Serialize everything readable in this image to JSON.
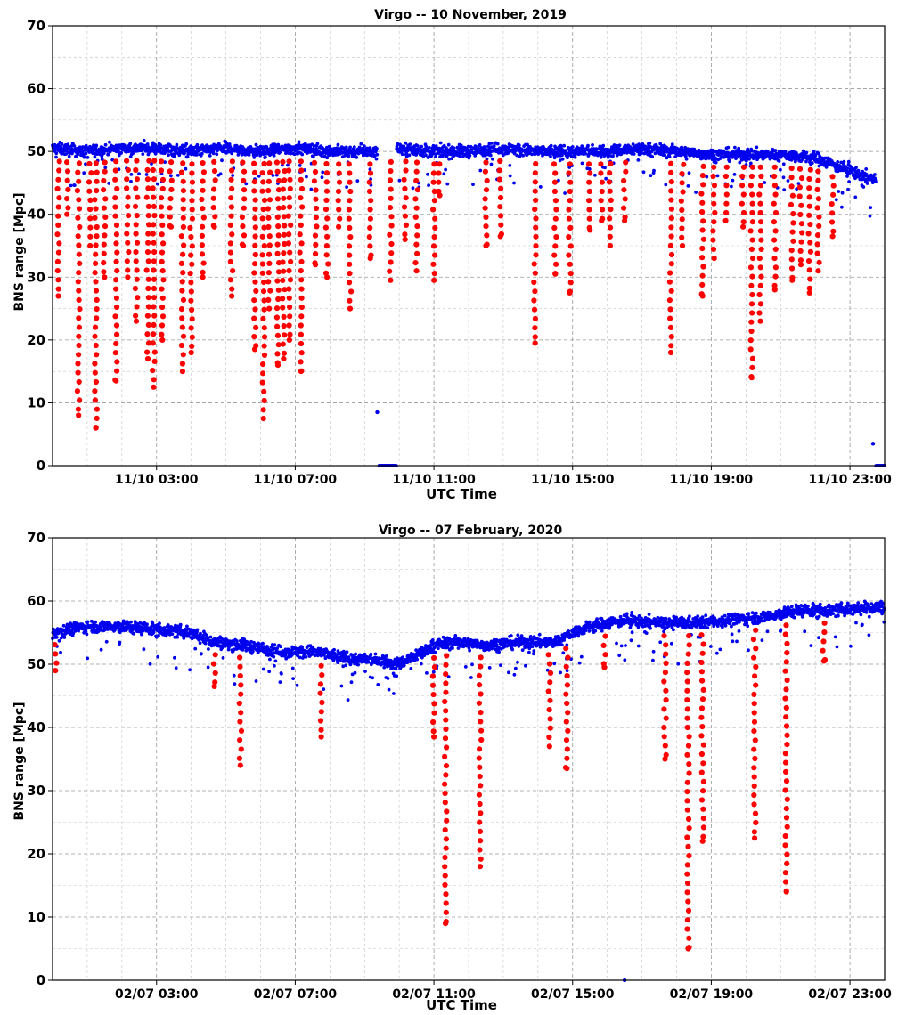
{
  "chart_data": [
    {
      "type": "scatter",
      "title": "Virgo -- 10 November, 2019",
      "xlabel": "UTC Time",
      "ylabel": "BNS range [Mpc]",
      "ylim": [
        0,
        70
      ],
      "xlim": [
        "2019-11-10 00:00",
        "2019-11-11 00:00"
      ],
      "grid": true,
      "yticks": [
        "0",
        "10",
        "20",
        "30",
        "40",
        "50",
        "60",
        "70"
      ],
      "xticks": [
        {
          "time": "2019-11-10 03:00",
          "label": "11/10 03:00"
        },
        {
          "time": "2019-11-10 07:00",
          "label": "11/10 07:00"
        },
        {
          "time": "2019-11-10 11:00",
          "label": "11/10 11:00"
        },
        {
          "time": "2019-11-10 15:00",
          "label": "11/10 15:00"
        },
        {
          "time": "2019-11-10 19:00",
          "label": "11/10 19:00"
        },
        {
          "time": "2019-11-10 23:00",
          "label": "11/10 23:00"
        }
      ],
      "series": [
        {
          "color": "#0000ee",
          "marker": "small-dot",
          "baseline": [
            [
              "2019-11-10 00:00",
              50.5
            ],
            [
              "2019-11-10 01:00",
              50.0
            ],
            [
              "2019-11-10 02:00",
              50.5
            ],
            [
              "2019-11-10 03:00",
              50.5
            ],
            [
              "2019-11-10 04:00",
              50.0
            ],
            [
              "2019-11-10 05:00",
              50.5
            ],
            [
              "2019-11-10 06:00",
              50.0
            ],
            [
              "2019-11-10 07:00",
              50.5
            ],
            [
              "2019-11-10 08:00",
              50.0
            ],
            [
              "2019-11-10 09:15",
              50.0
            ],
            [
              "2019-11-10 10:00",
              50.5
            ],
            [
              "2019-11-10 11:00",
              50.0
            ],
            [
              "2019-11-10 12:00",
              50.0
            ],
            [
              "2019-11-10 13:00",
              50.5
            ],
            [
              "2019-11-10 14:00",
              50.0
            ],
            [
              "2019-11-10 15:00",
              50.0
            ],
            [
              "2019-11-10 16:00",
              50.0
            ],
            [
              "2019-11-10 17:00",
              50.5
            ],
            [
              "2019-11-10 18:00",
              50.0
            ],
            [
              "2019-11-10 19:00",
              49.5
            ],
            [
              "2019-11-10 20:00",
              49.5
            ],
            [
              "2019-11-10 21:00",
              49.5
            ],
            [
              "2019-11-10 22:00",
              49.0
            ],
            [
              "2019-11-10 23:00",
              47.0
            ],
            [
              "2019-11-10 23:40",
              45.5
            ]
          ],
          "gaps": [
            [
              "2019-11-10 09:22",
              "2019-11-10 09:55"
            ],
            [
              "2019-11-10 23:45",
              "2019-11-11 00:00"
            ]
          ],
          "zero_segments": [
            [
              "2019-11-10 09:25",
              "2019-11-10 09:55"
            ],
            [
              "2019-11-10 23:45",
              "2019-11-11 00:00"
            ]
          ],
          "outliers": [
            [
              "2019-11-10 09:22",
              8.5
            ],
            [
              "2019-11-10 23:40",
              3.5
            ]
          ]
        },
        {
          "color": "#ff0000",
          "marker": "large-dot",
          "dips": [
            [
              "2019-11-10 00:10",
              27
            ],
            [
              "2019-11-10 00:25",
              40
            ],
            [
              "2019-11-10 00:45",
              8
            ],
            [
              "2019-11-10 01:05",
              35
            ],
            [
              "2019-11-10 01:15",
              6
            ],
            [
              "2019-11-10 01:30",
              30
            ],
            [
              "2019-11-10 01:50",
              13.5
            ],
            [
              "2019-11-10 02:10",
              30
            ],
            [
              "2019-11-10 02:25",
              23
            ],
            [
              "2019-11-10 02:45",
              17
            ],
            [
              "2019-11-10 02:55",
              12.5
            ],
            [
              "2019-11-10 03:10",
              20
            ],
            [
              "2019-11-10 03:25",
              38
            ],
            [
              "2019-11-10 03:45",
              15
            ],
            [
              "2019-11-10 04:00",
              18
            ],
            [
              "2019-11-10 04:20",
              30
            ],
            [
              "2019-11-10 04:40",
              38
            ],
            [
              "2019-11-10 05:10",
              27
            ],
            [
              "2019-11-10 05:30",
              35
            ],
            [
              "2019-11-10 05:50",
              18.5
            ],
            [
              "2019-11-10 06:05",
              7.5
            ],
            [
              "2019-11-10 06:15",
              25
            ],
            [
              "2019-11-10 06:30",
              16
            ],
            [
              "2019-11-10 06:40",
              17
            ],
            [
              "2019-11-10 06:50",
              20
            ],
            [
              "2019-11-10 07:10",
              15
            ],
            [
              "2019-11-10 07:35",
              32
            ],
            [
              "2019-11-10 07:55",
              30
            ],
            [
              "2019-11-10 08:15",
              38
            ],
            [
              "2019-11-10 08:35",
              25
            ],
            [
              "2019-11-10 09:10",
              33
            ],
            [
              "2019-11-10 09:45",
              29.5
            ],
            [
              "2019-11-10 10:10",
              36
            ],
            [
              "2019-11-10 10:30",
              31
            ],
            [
              "2019-11-10 11:00",
              29.5
            ],
            [
              "2019-11-10 11:10",
              43
            ],
            [
              "2019-11-10 12:30",
              35
            ],
            [
              "2019-11-10 12:55",
              36.5
            ],
            [
              "2019-11-10 13:55",
              19.5
            ],
            [
              "2019-11-10 14:30",
              30.5
            ],
            [
              "2019-11-10 14:55",
              27.5
            ],
            [
              "2019-11-10 15:30",
              37.5
            ],
            [
              "2019-11-10 15:50",
              39
            ],
            [
              "2019-11-10 16:05",
              35
            ],
            [
              "2019-11-10 16:30",
              39
            ],
            [
              "2019-11-10 17:50",
              18
            ],
            [
              "2019-11-10 18:10",
              35
            ],
            [
              "2019-11-10 18:45",
              27
            ],
            [
              "2019-11-10 19:05",
              33
            ],
            [
              "2019-11-10 19:25",
              39
            ],
            [
              "2019-11-10 19:55",
              38
            ],
            [
              "2019-11-10 20:10",
              14
            ],
            [
              "2019-11-10 20:25",
              23
            ],
            [
              "2019-11-10 20:50",
              28
            ],
            [
              "2019-11-10 21:20",
              29.5
            ],
            [
              "2019-11-10 21:35",
              32
            ],
            [
              "2019-11-10 21:50",
              27.5
            ],
            [
              "2019-11-10 22:05",
              31
            ],
            [
              "2019-11-10 22:30",
              36.5
            ]
          ]
        }
      ]
    },
    {
      "type": "scatter",
      "title": "Virgo -- 07 February, 2020",
      "xlabel": "UTC Time",
      "ylabel": "BNS range [Mpc]",
      "ylim": [
        0,
        70
      ],
      "xlim": [
        "2020-02-07 00:00",
        "2020-02-08 00:00"
      ],
      "grid": true,
      "yticks": [
        "0",
        "10",
        "20",
        "30",
        "40",
        "50",
        "60",
        "70"
      ],
      "xticks": [
        {
          "time": "2020-02-07 03:00",
          "label": "02/07 03:00"
        },
        {
          "time": "2020-02-07 07:00",
          "label": "02/07 07:00"
        },
        {
          "time": "2020-02-07 11:00",
          "label": "02/07 11:00"
        },
        {
          "time": "2020-02-07 15:00",
          "label": "02/07 15:00"
        },
        {
          "time": "2020-02-07 19:00",
          "label": "02/07 19:00"
        },
        {
          "time": "2020-02-07 23:00",
          "label": "02/07 23:00"
        }
      ],
      "series": [
        {
          "color": "#0000ee",
          "marker": "small-dot",
          "baseline": [
            [
              "2020-02-07 00:00",
              55.0
            ],
            [
              "2020-02-07 01:00",
              56.0
            ],
            [
              "2020-02-07 02:00",
              56.0
            ],
            [
              "2020-02-07 03:00",
              55.5
            ],
            [
              "2020-02-07 04:00",
              55.0
            ],
            [
              "2020-02-07 04:40",
              53.5
            ],
            [
              "2020-02-07 05:30",
              53.0
            ],
            [
              "2020-02-07 06:30",
              52.0
            ],
            [
              "2020-02-07 07:30",
              52.0
            ],
            [
              "2020-02-07 08:30",
              51.0
            ],
            [
              "2020-02-07 09:30",
              50.5
            ],
            [
              "2020-02-07 10:00",
              50.0
            ],
            [
              "2020-02-07 10:30",
              51.5
            ],
            [
              "2020-02-07 11:00",
              53.0
            ],
            [
              "2020-02-07 11:30",
              53.5
            ],
            [
              "2020-02-07 12:30",
              53.0
            ],
            [
              "2020-02-07 13:30",
              53.5
            ],
            [
              "2020-02-07 14:30",
              53.5
            ],
            [
              "2020-02-07 15:00",
              55.0
            ],
            [
              "2020-02-07 15:30",
              56.0
            ],
            [
              "2020-02-07 16:30",
              57.0
            ],
            [
              "2020-02-07 17:30",
              56.5
            ],
            [
              "2020-02-07 18:30",
              56.5
            ],
            [
              "2020-02-07 19:30",
              57.0
            ],
            [
              "2020-02-07 20:30",
              57.5
            ],
            [
              "2020-02-07 21:30",
              58.5
            ],
            [
              "2020-02-07 22:30",
              58.5
            ],
            [
              "2020-02-07 23:30",
              59.0
            ],
            [
              "2020-02-08 00:00",
              59.0
            ]
          ],
          "outliers": [
            [
              "2020-02-07 16:30",
              0
            ]
          ]
        },
        {
          "color": "#ff0000",
          "marker": "large-dot",
          "dips": [
            [
              "2020-02-07 00:05",
              49
            ],
            [
              "2020-02-07 04:40",
              46.5
            ],
            [
              "2020-02-07 05:25",
              34
            ],
            [
              "2020-02-07 07:45",
              38.5
            ],
            [
              "2020-02-07 11:00",
              38.5
            ],
            [
              "2020-02-07 11:20",
              9
            ],
            [
              "2020-02-07 12:20",
              18
            ],
            [
              "2020-02-07 14:20",
              37
            ],
            [
              "2020-02-07 14:50",
              33.5
            ],
            [
              "2020-02-07 15:55",
              49.5
            ],
            [
              "2020-02-07 17:40",
              35
            ],
            [
              "2020-02-07 18:20",
              5
            ],
            [
              "2020-02-07 18:45",
              22
            ],
            [
              "2020-02-07 20:15",
              22.5
            ],
            [
              "2020-02-07 21:10",
              14
            ],
            [
              "2020-02-07 22:15",
              50.5
            ]
          ]
        }
      ]
    }
  ]
}
